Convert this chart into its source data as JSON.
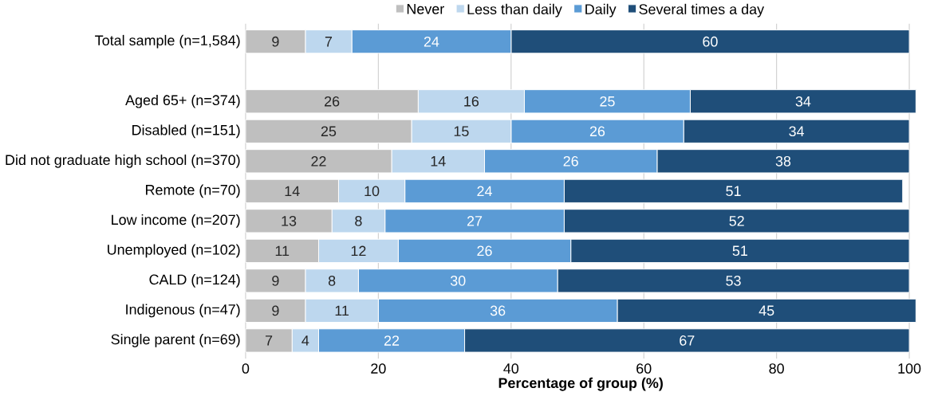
{
  "chart_data": {
    "type": "bar",
    "orientation": "horizontal",
    "stacked": true,
    "xlabel": "Percentage of group (%)",
    "categories": [
      "Total sample (n=1,584)",
      null,
      "Aged 65+ (n=374)",
      "Disabled (n=151)",
      "Did not graduate high school (n=370)",
      "Remote (n=70)",
      "Low income (n=207)",
      "Unemployed (n=102)",
      "CALD (n=124)",
      "Indigenous (n=47)",
      "Single parent (n=69)"
    ],
    "series": [
      {
        "name": "Never",
        "color": "#bfbfbf",
        "values": [
          9,
          null,
          26,
          25,
          22,
          14,
          13,
          11,
          9,
          9,
          7
        ]
      },
      {
        "name": "Less than daily",
        "color": "#bdd7ee",
        "values": [
          7,
          null,
          16,
          15,
          14,
          10,
          8,
          12,
          8,
          11,
          4
        ]
      },
      {
        "name": "Daily",
        "color": "#5b9bd5",
        "values": [
          24,
          null,
          25,
          26,
          26,
          24,
          27,
          26,
          30,
          36,
          22
        ]
      },
      {
        "name": "Several times a day",
        "color": "#1f4e79",
        "values": [
          60,
          null,
          34,
          34,
          38,
          51,
          52,
          51,
          53,
          45,
          67
        ]
      }
    ],
    "xlim": [
      0,
      101
    ],
    "xticks": [
      0,
      20,
      40,
      60,
      80,
      100
    ],
    "grid": "x",
    "legend": "top",
    "data_labels": true
  }
}
